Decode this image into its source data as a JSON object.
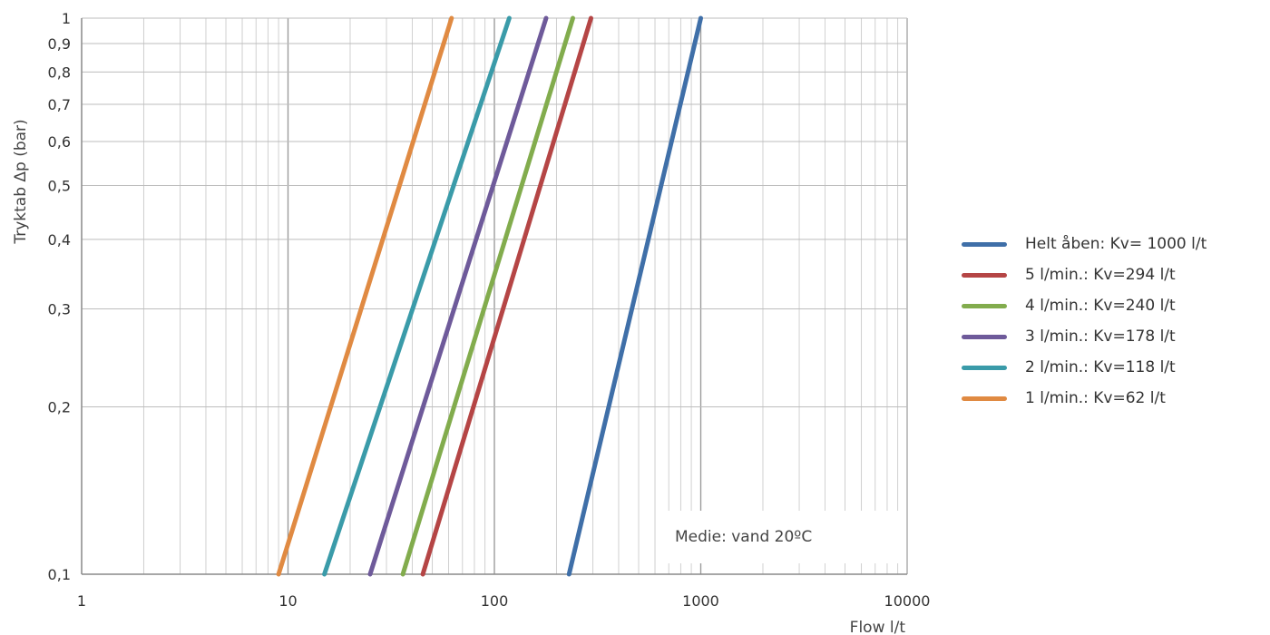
{
  "chart_data": {
    "type": "line",
    "xscale": "log",
    "yscale": "log",
    "xlim": [
      1,
      10000
    ],
    "ylim": [
      0.1,
      1
    ],
    "xlabel": "Flow l/t",
    "ylabel": "Tryktab Δp (bar)",
    "x_ticks": [
      "1",
      "10",
      "100",
      "1000",
      "10000"
    ],
    "y_ticks": [
      {
        "v": 0.1,
        "label": "0,1"
      },
      {
        "v": 0.2,
        "label": "0,2"
      },
      {
        "v": 0.3,
        "label": "0,3"
      },
      {
        "v": 0.4,
        "label": "0,4"
      },
      {
        "v": 0.5,
        "label": "0,5"
      },
      {
        "v": 0.6,
        "label": "0,6"
      },
      {
        "v": 0.7,
        "label": "0,7"
      },
      {
        "v": 0.8,
        "label": "0,8"
      },
      {
        "v": 0.9,
        "label": "0,9"
      },
      {
        "v": 1,
        "label": "1"
      }
    ],
    "grid": true,
    "legend_position": "right",
    "annotation": "Medie: vand 20ºC",
    "series": [
      {
        "name": "Helt åben: Kv= 1000 l/t",
        "color": "#3f6fa8",
        "points": [
          [
            230,
            0.1
          ],
          [
            1000,
            1
          ]
        ]
      },
      {
        "name": "5 l/min.: Kv=294 l/t",
        "color": "#b54545",
        "points": [
          [
            45,
            0.1
          ],
          [
            294,
            1
          ]
        ]
      },
      {
        "name": "4 l/min.: Kv=240 l/t",
        "color": "#82ac4d",
        "points": [
          [
            36,
            0.1
          ],
          [
            240,
            1
          ]
        ]
      },
      {
        "name": "3 l/min.: Kv=178 l/t",
        "color": "#6e5a9a",
        "points": [
          [
            25,
            0.1
          ],
          [
            178,
            1
          ]
        ]
      },
      {
        "name": "2 l/min.: Kv=118 l/t",
        "color": "#3a9ba9",
        "points": [
          [
            15,
            0.1
          ],
          [
            118,
            1
          ]
        ]
      },
      {
        "name": "1 l/min.: Kv=62 l/t",
        "color": "#e08a42",
        "points": [
          [
            9,
            0.1
          ],
          [
            62,
            1
          ]
        ]
      }
    ]
  }
}
